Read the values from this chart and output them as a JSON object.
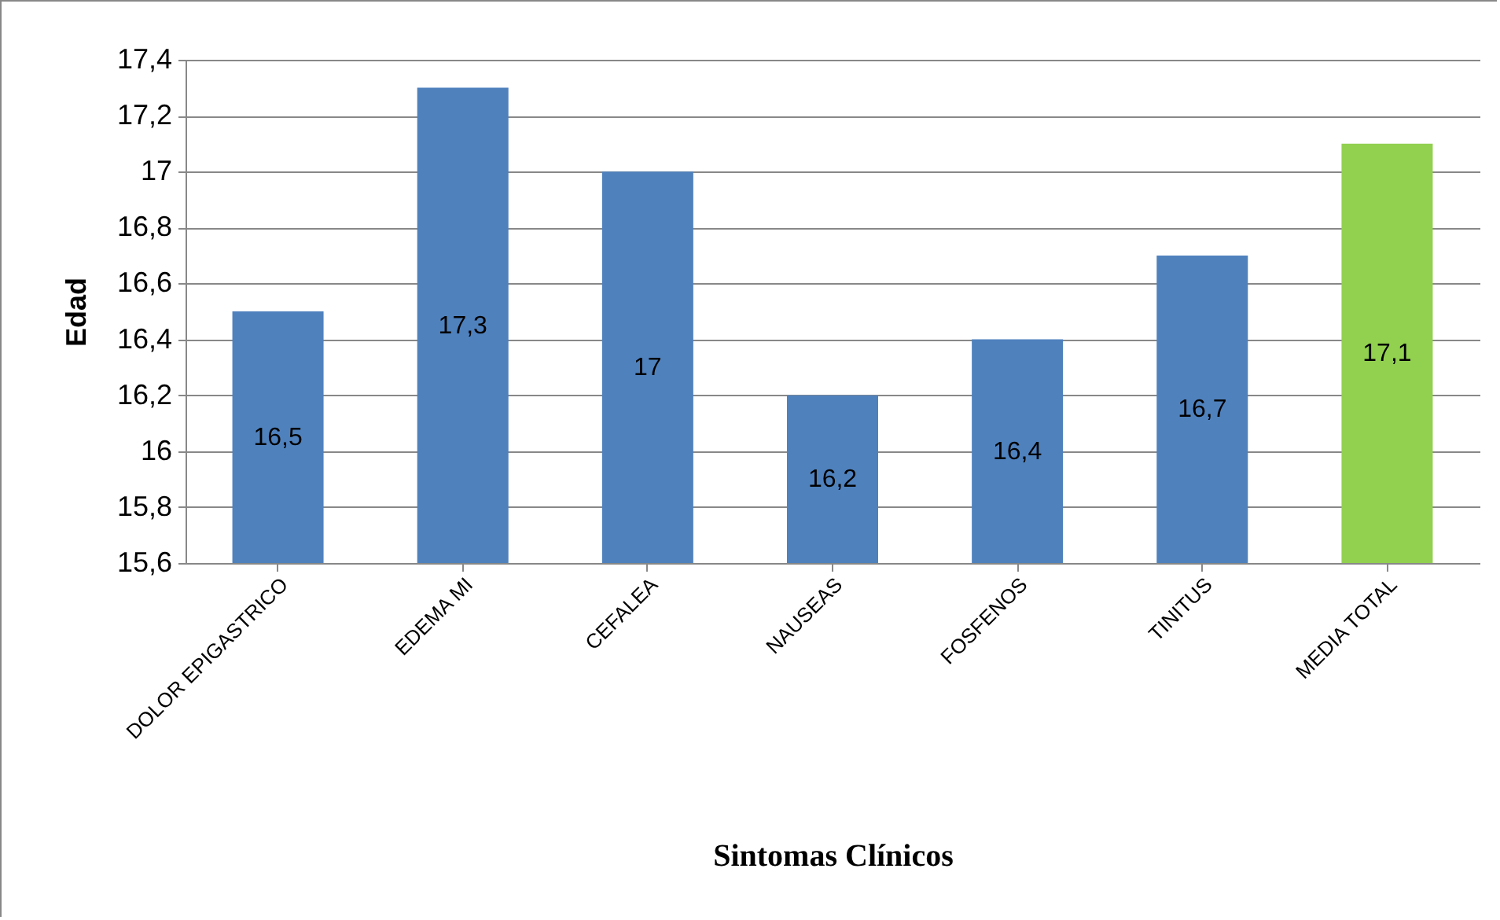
{
  "chart_data": {
    "type": "bar",
    "xlabel": "Sintomas Clínicos",
    "ylabel": "Edad",
    "categories": [
      "DOLOR EPIGASTRICO",
      "EDEMA MI",
      "CEFALEA",
      "NAUSEAS",
      "FOSFENOS",
      "TINITUS",
      "MEDIA TOTAL"
    ],
    "values": [
      16.5,
      17.3,
      17,
      16.2,
      16.4,
      16.7,
      17.1
    ],
    "value_labels": [
      "16,5",
      "17,3",
      "17",
      "16,2",
      "16,4",
      "16,7",
      "17,1"
    ],
    "colors": [
      "#4f81bd",
      "#4f81bd",
      "#4f81bd",
      "#4f81bd",
      "#4f81bd",
      "#4f81bd",
      "#92d050"
    ],
    "ylim": [
      15.6,
      17.4
    ],
    "yticks": [
      {
        "value": 15.6,
        "label": "15,6"
      },
      {
        "value": 15.8,
        "label": "15,8"
      },
      16,
      {
        "value": 16.2,
        "label": "16,2"
      },
      {
        "value": 16.4,
        "label": "16,4"
      },
      {
        "value": 16.6,
        "label": "16,6"
      },
      {
        "value": 16.8,
        "label": "16,8"
      },
      17,
      {
        "value": 17.2,
        "label": "17,2"
      },
      {
        "value": 17.4,
        "label": "17,4"
      }
    ],
    "grid": "y",
    "legend": false
  }
}
